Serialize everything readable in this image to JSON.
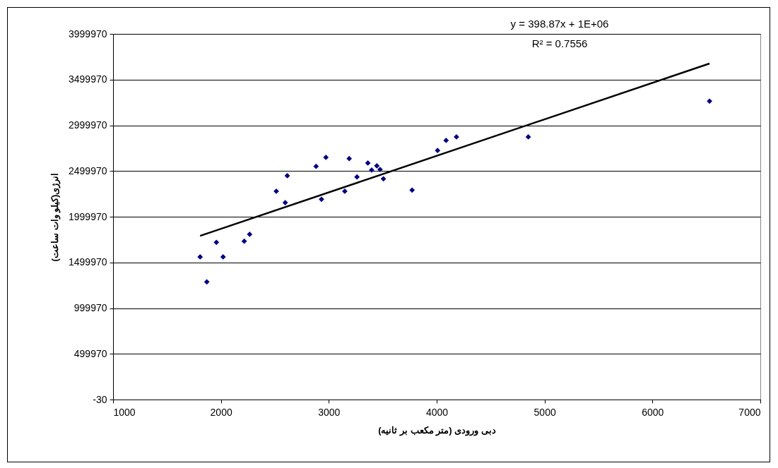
{
  "chart_data": {
    "type": "scatter",
    "xlabel": "دبی ورودی (متر مکعب بر ثانیه)",
    "ylabel": "انرژی(کیلو وات ساعت)",
    "annotations": [
      "y = 398.87x + 1E+06",
      "R² = 0.7556"
    ],
    "xlim": [
      1000,
      7000
    ],
    "xticks": [
      1000,
      2000,
      3000,
      4000,
      5000,
      6000,
      7000
    ],
    "ylim": [
      -30,
      3999970
    ],
    "yticks": [
      -30,
      499970,
      999970,
      1499970,
      1999970,
      2499970,
      2999970,
      3499970,
      3999970
    ],
    "grid": "y",
    "series": [
      {
        "color": "#000080",
        "marker": "diamond",
        "x": [
          1807,
          1869,
          1958,
          2020,
          2216,
          2266,
          2513,
          2596,
          2615,
          2882,
          2932,
          2973,
          3148,
          3189,
          3261,
          3362,
          3397,
          3445,
          3475,
          3506,
          3772,
          4008,
          4087,
          4183,
          4849,
          6529
        ],
        "values": [
          1560000,
          1287000,
          1720000,
          1560000,
          1732000,
          1807000,
          2278000,
          2154000,
          2448000,
          2551000,
          2191000,
          2649000,
          2278000,
          2636000,
          2435000,
          2587000,
          2510000,
          2556000,
          2517000,
          2415000,
          2291000,
          2724000,
          2834000,
          2873000,
          2873000,
          3264000
        ]
      },
      {
        "type": "line",
        "color": "#000000",
        "marker": "none",
        "x": [
          1807,
          6529
        ],
        "values": [
          1790000,
          3676000
        ]
      }
    ]
  }
}
